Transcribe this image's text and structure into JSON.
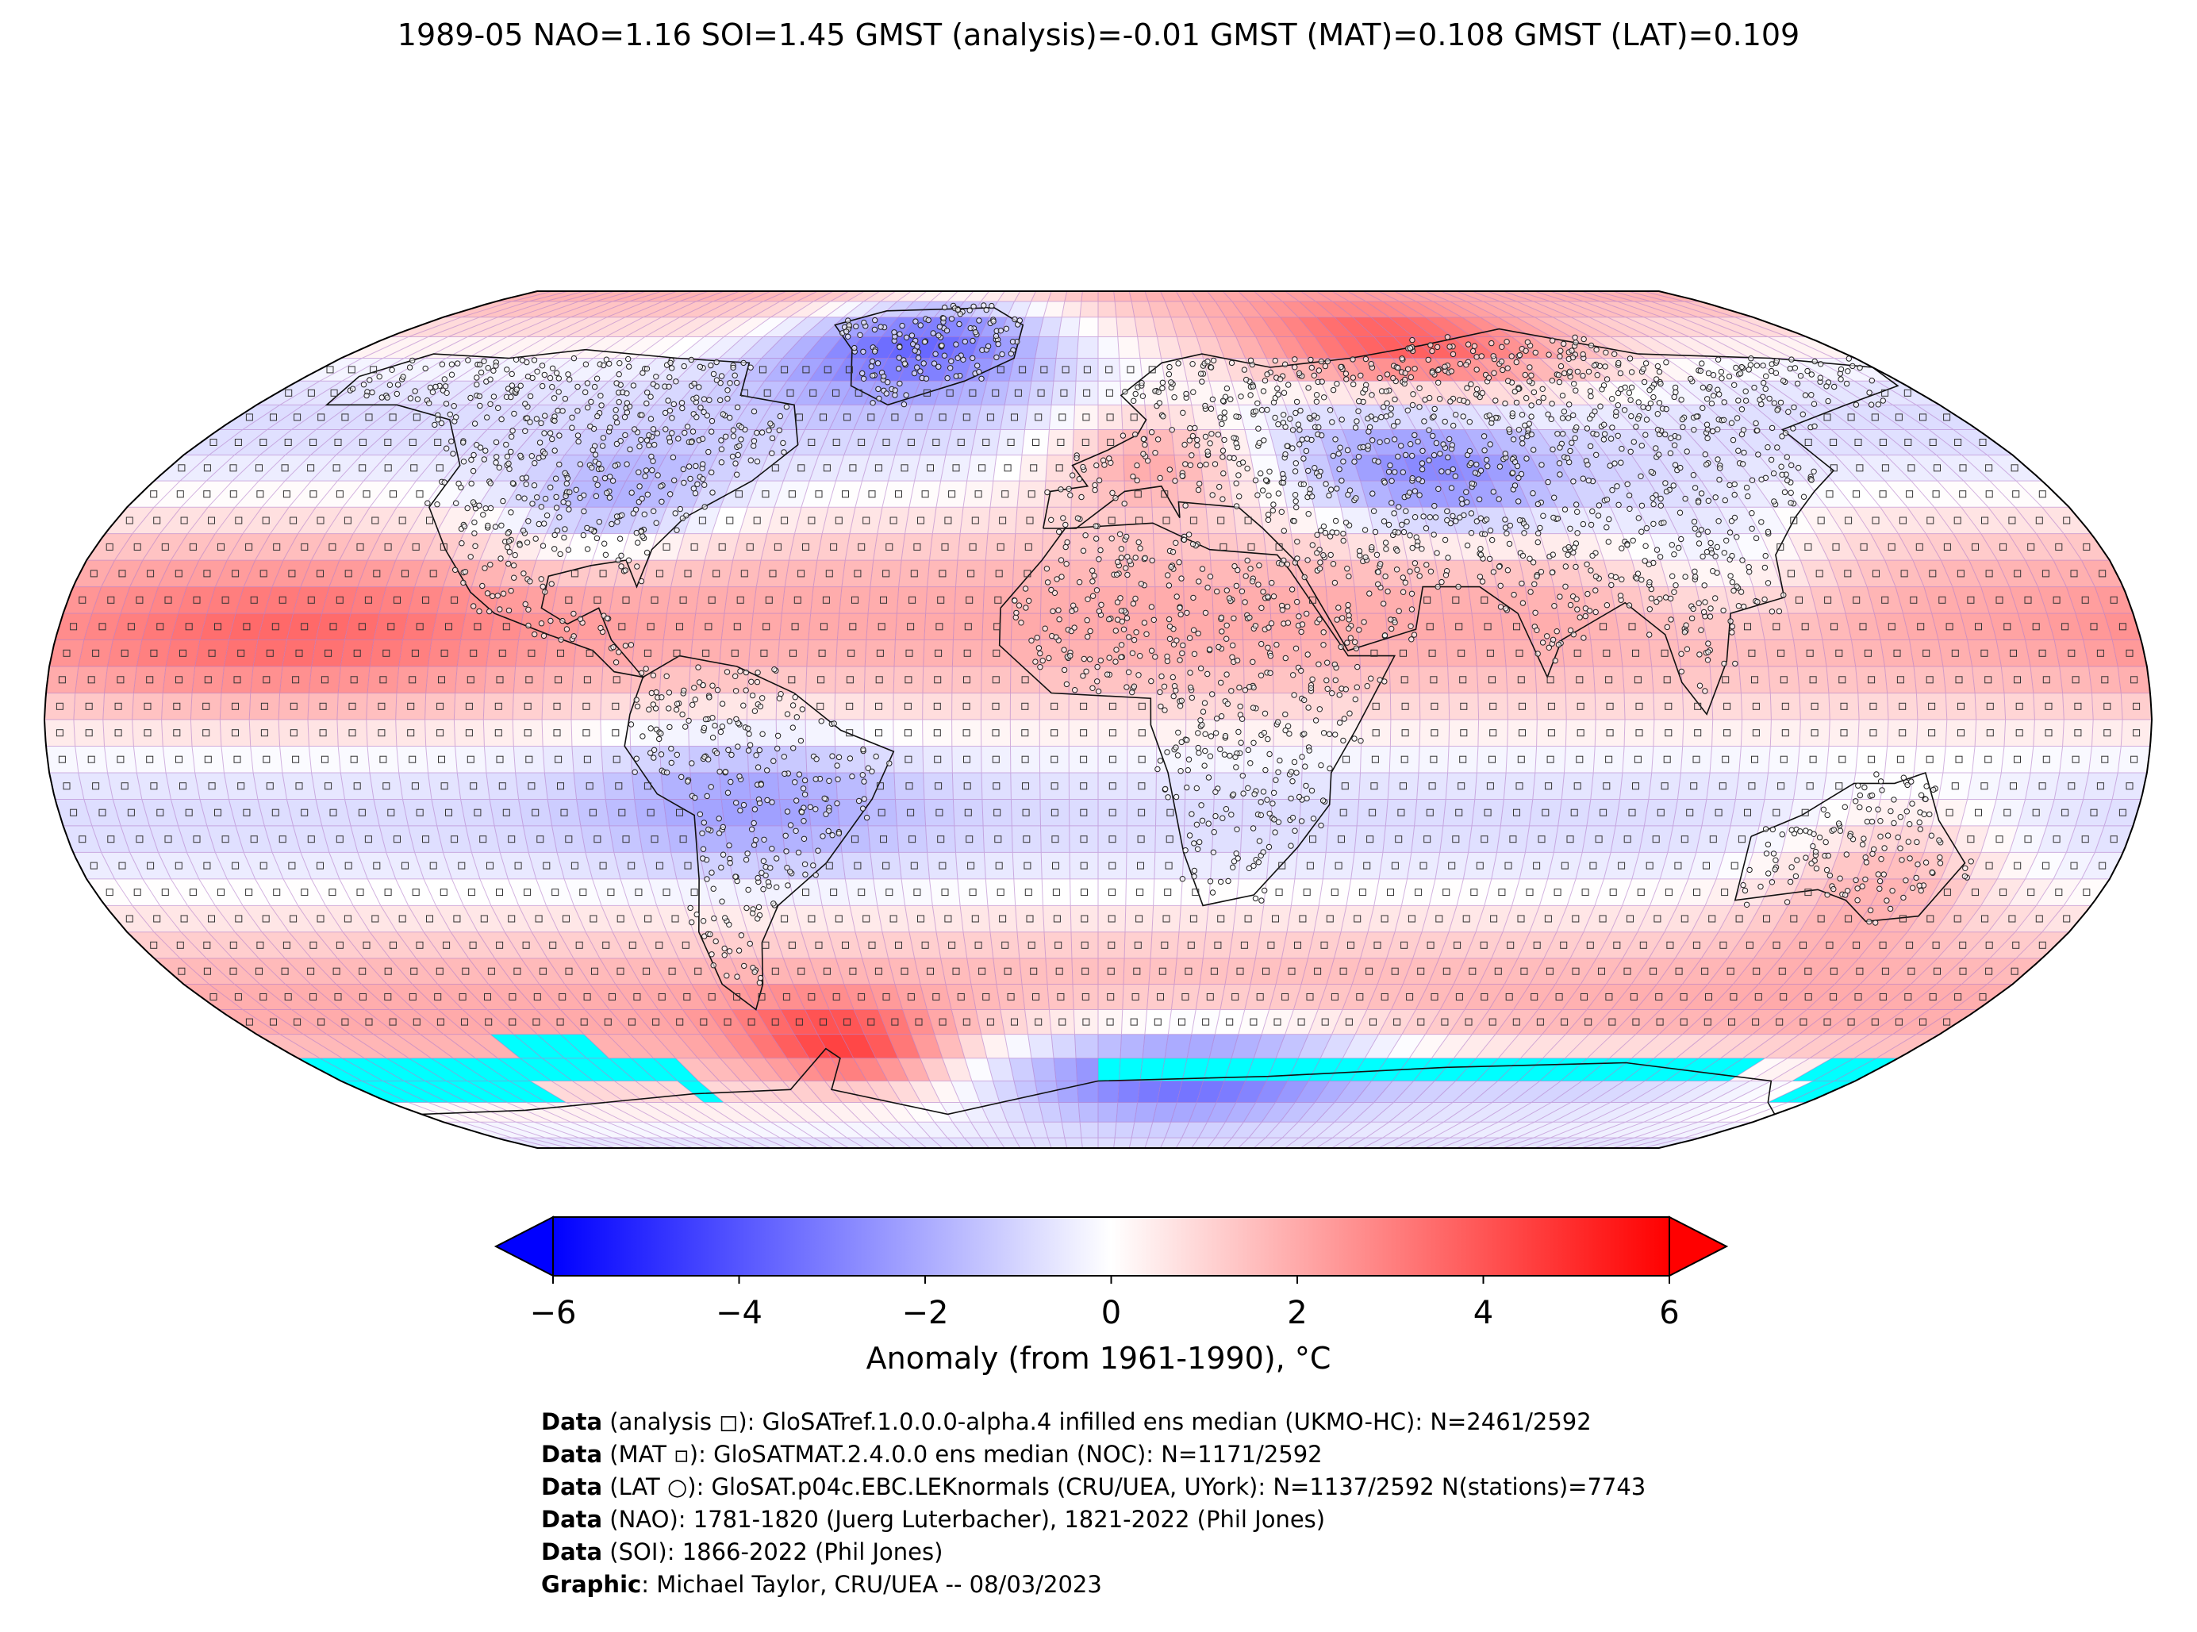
{
  "title": "1989-05 NAO=1.16 SOI=1.45 GMST (analysis)=-0.01 GMST (MAT)=0.108 GMST (LAT)=0.109",
  "colorbar": {
    "label": "Anomaly (from 1961-1990), °C",
    "ticks": [
      "−6",
      "−4",
      "−2",
      "0",
      "2",
      "4",
      "6"
    ],
    "min": -6,
    "max": 6,
    "low_color": "#0000ff",
    "mid_color": "#ffffff",
    "high_color": "#ff0000",
    "missing_color": "#00ffff"
  },
  "credits": [
    {
      "bold": "Data",
      "text": " (analysis ◻): GloSATref.1.0.0.0-alpha.4 infilled ens median (UKMO-HC): N=2461/2592"
    },
    {
      "bold": "Data",
      "text": " (MAT ▫): GloSATMAT.2.4.0.0 ens median (NOC): N=1171/2592"
    },
    {
      "bold": "Data",
      "text": " (LAT ○): GloSAT.p04c.EBC.LEKnormals (CRU/UEA, UYork): N=1137/2592 N(stations)=7743"
    },
    {
      "bold": "Data",
      "text": " (NAO): 1781-1820 (Juerg Luterbacher), 1821-2022 (Phil Jones)"
    },
    {
      "bold": "Data",
      "text": " (SOI): 1866-2022 (Phil Jones)"
    },
    {
      "bold": "Graphic",
      "text": ": Michael Taylor, CRU/UEA -- 08/03/2023"
    }
  ],
  "map": {
    "projection": "Robinson",
    "grid": "5x5 degree",
    "features": [
      "coastlines",
      "country borders",
      "grid cells",
      "station markers"
    ]
  }
}
